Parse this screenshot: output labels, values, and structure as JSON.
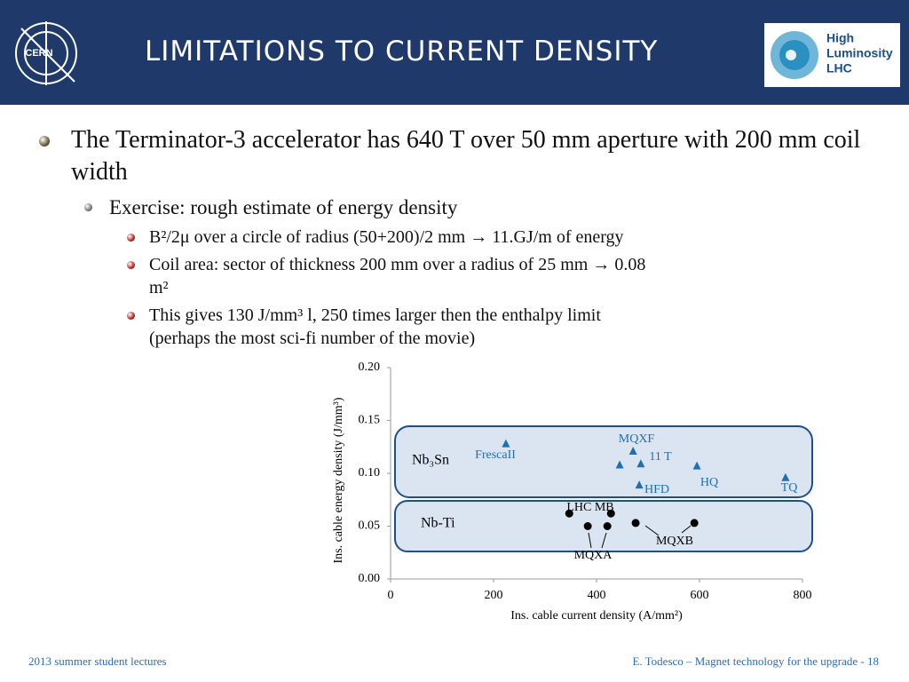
{
  "header": {
    "title": "LIMITATIONS TO CURRENT DENSITY",
    "logo_left": "CERN",
    "logo_right": [
      "High",
      "Luminosity",
      "LHC"
    ]
  },
  "bullets": [
    {
      "level": 1,
      "text": "The Terminator-3 accelerator has 640 T over 50 mm aperture with 200 mm coil width"
    },
    {
      "level": 2,
      "text": "Exercise: rough estimate of energy density"
    },
    {
      "level": 3,
      "text": "B²/2μ over a circle of radius (50+200)/2 mm → 11.GJ/m of energy"
    },
    {
      "level": 3,
      "text": "Coil area: sector of thickness 200 mm over a radius of 25 mm → 0.08 m²"
    },
    {
      "level": 3,
      "text": "This gives 130 J/mm³ l, 250 times larger then the enthalpy limit (perhaps the most sci-fi number of the movie)"
    }
  ],
  "chart_data": {
    "type": "scatter",
    "x_label": "Ins. cable current density (A/mm²)",
    "y_label": "Ins. cable energy density (J/mm³)",
    "xlim": [
      0,
      800
    ],
    "ylim": [
      0,
      0.2
    ],
    "xticks": [
      0,
      200,
      400,
      600,
      800
    ],
    "yticks": [
      {
        "value": 0,
        "label": "0.00"
      },
      0.05,
      {
        "value": 0.1,
        "label": "0.10"
      },
      0.15,
      {
        "value": 0.2,
        "label": "0.20"
      }
    ],
    "series": [
      {
        "name": "Nb₃Sn",
        "color": "#1f6fb5",
        "marker": "triangle",
        "x": [
          224,
          471,
          445,
          486,
          483,
          595,
          767
        ],
        "y": [
          0.128,
          0.121,
          0.108,
          0.109,
          0.089,
          0.107,
          0.096
        ]
      },
      {
        "name": "Nb-Ti",
        "color": "#000000",
        "marker": "circle",
        "x": [
          347,
          428,
          383,
          421,
          476,
          590
        ],
        "y": [
          0.062,
          0.062,
          0.05,
          0.05,
          0.053,
          0.053
        ]
      }
    ],
    "annotations": [
      "FrescaII",
      "MQXF",
      "11 T",
      "HFD",
      "HQ",
      "TQ",
      "LHC MB",
      "MQXA",
      "MQXB"
    ]
  },
  "footer": {
    "left": "2013 summer student lectures",
    "right": "E. Todesco – Magnet technology for the upgrade - 18"
  }
}
